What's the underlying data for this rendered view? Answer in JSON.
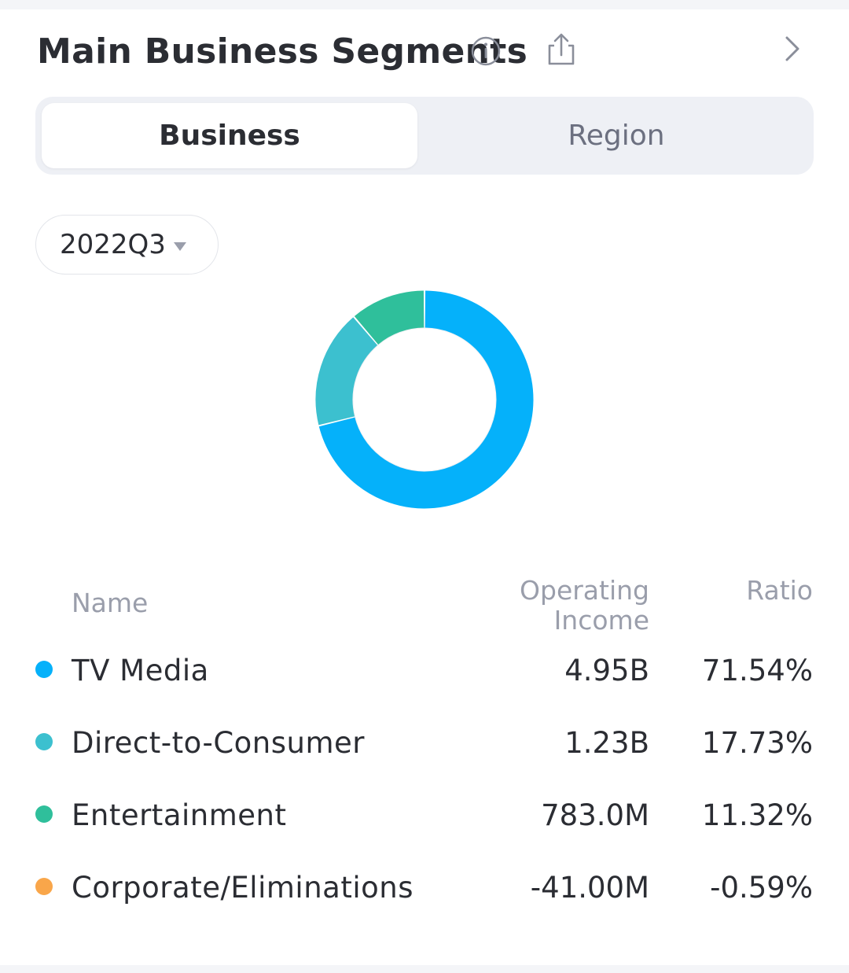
{
  "header": {
    "title": "Main Business Segments",
    "icons": [
      "info-icon",
      "share-icon",
      "chevron-right-icon"
    ]
  },
  "tabs": [
    {
      "label": "Business",
      "selected": true
    },
    {
      "label": "Region",
      "selected": false
    }
  ],
  "period": {
    "label": "2022Q3",
    "icon": "caret-down-icon"
  },
  "table": {
    "headers": {
      "name": "Name",
      "income_line1": "Operating",
      "income_line2": "Income",
      "ratio": "Ratio"
    },
    "rows": [
      {
        "name": "TV Media",
        "income": "4.95B",
        "ratio": "71.54%",
        "color": "#05b1fa"
      },
      {
        "name": "Direct-to-Consumer",
        "income": "1.23B",
        "ratio": "17.73%",
        "color": "#3cc0cf"
      },
      {
        "name": "Entertainment",
        "income": "783.0M",
        "ratio": "11.32%",
        "color": "#2fbf9b"
      },
      {
        "name": "Corporate/Eliminations",
        "income": "-41.00M",
        "ratio": "-0.59%",
        "color": "#f9a64a"
      }
    ]
  },
  "chart_data": {
    "type": "pie",
    "variant": "donut",
    "categories": [
      "TV Media",
      "Direct-to-Consumer",
      "Entertainment",
      "Corporate/Eliminations"
    ],
    "values": [
      71.54,
      17.73,
      11.32,
      -0.59
    ],
    "unit": "%",
    "colors": [
      "#05b1fa",
      "#3cc0cf",
      "#2fbf9b",
      "#f9a64a"
    ]
  }
}
